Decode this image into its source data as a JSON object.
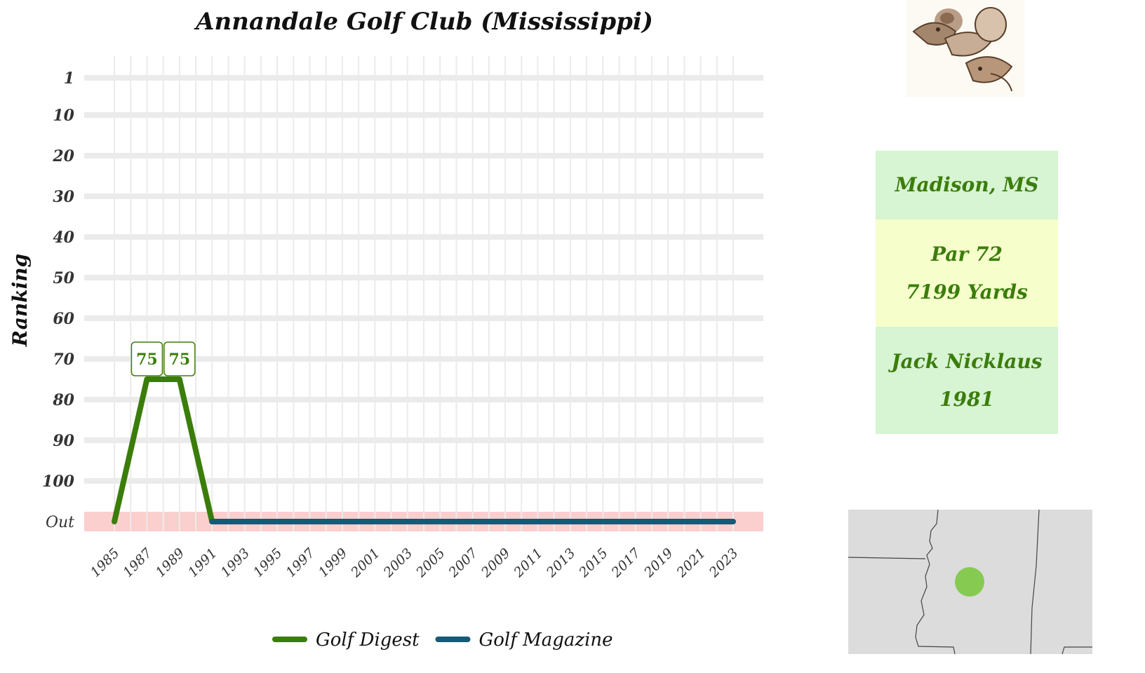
{
  "chart_data": {
    "type": "line",
    "title": "Annandale Golf Club (Mississippi)",
    "ylabel": "Ranking",
    "xlabel": "",
    "x_ticks": [
      "1985",
      "1987",
      "1989",
      "1991",
      "1993",
      "1995",
      "1997",
      "1999",
      "2001",
      "2003",
      "2005",
      "2007",
      "2009",
      "2011",
      "2013",
      "2015",
      "2017",
      "2019",
      "2021",
      "2023"
    ],
    "y_ticks": [
      "1",
      "10",
      "20",
      "30",
      "40",
      "50",
      "60",
      "70",
      "80",
      "90",
      "100",
      "Out"
    ],
    "y_reversed": true,
    "out_band_color": "#fccfcf",
    "grid": true,
    "legend": "bottom",
    "series": [
      {
        "name": "Golf Digest",
        "color": "#3b7d0b",
        "points": [
          {
            "x": 1985,
            "y": "Out"
          },
          {
            "x": 1987,
            "y": 75
          },
          {
            "x": 1989,
            "y": 75
          },
          {
            "x": 1991,
            "y": "Out"
          }
        ],
        "labels": [
          {
            "x": 1987,
            "text": "75"
          },
          {
            "x": 1989,
            "text": "75"
          }
        ]
      },
      {
        "name": "Golf Magazine",
        "color": "#165a78",
        "points": [
          {
            "x": 1991,
            "y": "Out"
          },
          {
            "x": 2023,
            "y": "Out"
          }
        ]
      }
    ]
  },
  "info": {
    "location": "Madison, MS",
    "par": "Par 72",
    "yards": "7199 Yards",
    "architect": "Jack Nicklaus",
    "year": "1981"
  },
  "icons": {
    "logo": "quail-birds-logo",
    "map": "state-location-map"
  },
  "colors": {
    "location_bg": "#d7f4d3",
    "course_bg": "#f6ffcc",
    "map_bg": "#dcdcdc",
    "map_marker": "#7cc843"
  }
}
